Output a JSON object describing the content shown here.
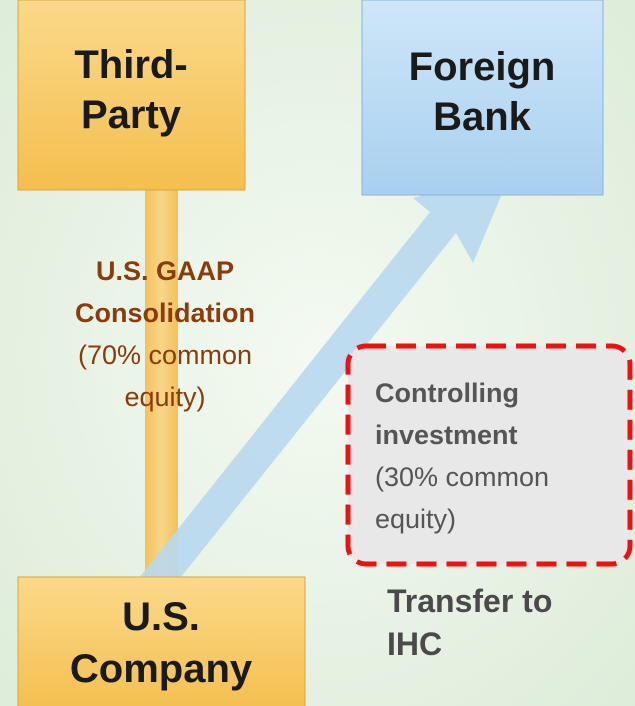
{
  "nodes": [
    {
      "label_lines": [
        "Third-",
        "Party"
      ]
    },
    {
      "label_lines": [
        "Foreign",
        "Bank"
      ]
    },
    {
      "label_lines": [
        "U.S.",
        "Company"
      ]
    }
  ],
  "annotations": [
    {
      "bold_lines": [
        "U.S. GAAP",
        "Consolidation"
      ],
      "lines": [
        "(70% common",
        "equity)"
      ]
    },
    {
      "bold_lines": [
        "Controlling",
        "investment"
      ],
      "lines": [
        "(30% common",
        "equity)"
      ]
    },
    {
      "bold_lines": [
        "Transfer to",
        "IHC"
      ]
    }
  ]
}
